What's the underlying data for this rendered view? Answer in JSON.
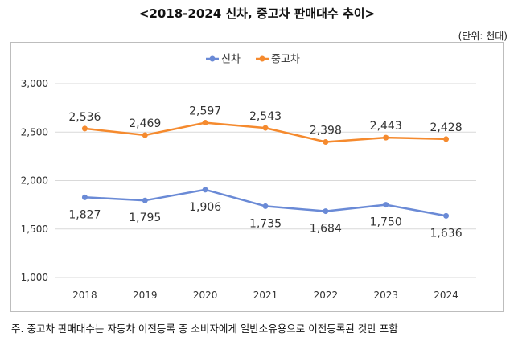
{
  "header": {
    "title": "<2018-2024 신차, 중고차 판매대수 추이>",
    "unit": "(단위: 천대)"
  },
  "footnote": "주. 중고차 판매대수는 자동차 이전등록 중 소비자에게 일반소유용으로 이전등록된 것만 포함",
  "chart_data": {
    "type": "line",
    "title": "<2018-2024 신차, 중고차 판매대수 추이>",
    "xlabel": "",
    "ylabel": "",
    "x": [
      "2018",
      "2019",
      "2020",
      "2021",
      "2022",
      "2023",
      "2024"
    ],
    "yticks": [
      "1,000",
      "1,500",
      "2,000",
      "2,500",
      "3,000"
    ],
    "ylim": [
      1000,
      3000
    ],
    "grid": true,
    "legend": "top-center",
    "series": [
      {
        "name": "신차",
        "color": "#6a8ad6",
        "values": [
          1827,
          1795,
          1906,
          1735,
          1684,
          1750,
          1636
        ],
        "labels": [
          "1,827",
          "1,795",
          "1,906",
          "1,735",
          "1,684",
          "1,750",
          "1,636"
        ]
      },
      {
        "name": "중고차",
        "color": "#f58a2e",
        "values": [
          2536,
          2469,
          2597,
          2543,
          2398,
          2443,
          2428
        ],
        "labels": [
          "2,536",
          "2,469",
          "2,597",
          "2,543",
          "2,398",
          "2,443",
          "2,428"
        ]
      }
    ]
  }
}
